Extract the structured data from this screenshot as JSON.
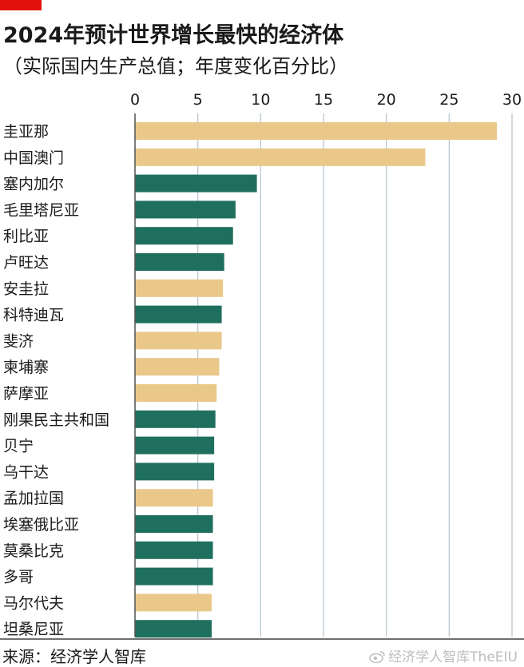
{
  "header": {
    "title": "2024年预计世界增长最快的经济体",
    "subtitle": "（实际国内生产总值；年度变化百分比）"
  },
  "footer": {
    "source": "来源：经济学人智库",
    "watermark": "经济学人智库TheEIU"
  },
  "colors": {
    "accent": "#e3120b",
    "gold": "#e9c88a",
    "green": "#1f6f5f",
    "grid": "#b9c7d0"
  },
  "chart_data": {
    "type": "bar",
    "orientation": "horizontal",
    "title": "2024年预计世界增长最快的经济体",
    "subtitle": "（实际国内生产总值；年度变化百分比）",
    "xlim": [
      0,
      30
    ],
    "xticks": [
      0,
      5,
      10,
      15,
      20,
      25,
      30
    ],
    "grid": true,
    "categories": [
      "圭亚那",
      "中国澳门",
      "塞内加尔",
      "毛里塔尼亚",
      "利比亚",
      "卢旺达",
      "安圭拉",
      "科特迪瓦",
      "斐济",
      "柬埔寨",
      "萨摩亚",
      "刚果民主共和国",
      "贝宁",
      "乌干达",
      "孟加拉国",
      "埃塞俄比亚",
      "莫桑比克",
      "多哥",
      "马尔代夫",
      "坦桑尼亚"
    ],
    "values": [
      28.8,
      23.1,
      9.7,
      8.0,
      7.8,
      7.1,
      7.0,
      6.9,
      6.9,
      6.7,
      6.5,
      6.4,
      6.3,
      6.3,
      6.2,
      6.2,
      6.2,
      6.2,
      6.1,
      6.1
    ],
    "colors": [
      "gold",
      "gold",
      "green",
      "green",
      "green",
      "green",
      "gold",
      "green",
      "gold",
      "gold",
      "gold",
      "green",
      "green",
      "green",
      "gold",
      "green",
      "green",
      "green",
      "gold",
      "green"
    ]
  }
}
